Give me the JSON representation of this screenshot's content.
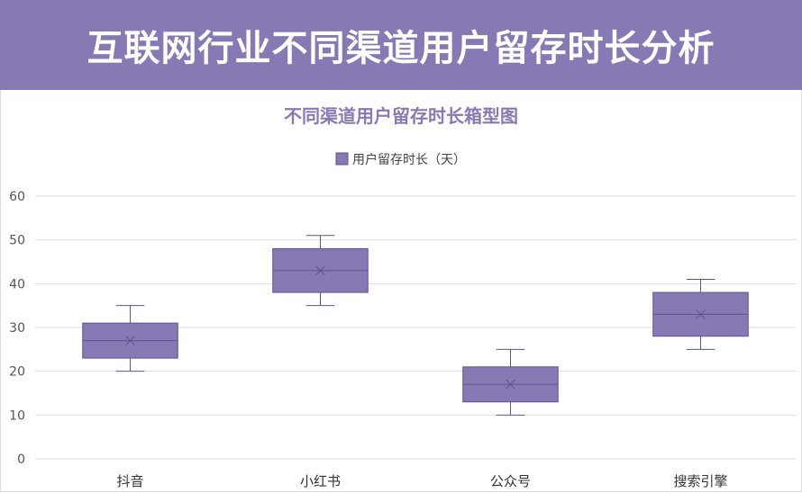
{
  "header": {
    "title": "互联网行业不同渠道用户留存时长分析"
  },
  "colors": {
    "accent": "#8779b4",
    "box_fill": "#8779b4",
    "box_stroke": "#5e5290",
    "grid": "#dddddd"
  },
  "chart_data": {
    "type": "box",
    "title": "不同渠道用户留存时长箱型图",
    "legend": {
      "label": "用户留存时长（天）",
      "position": "top"
    },
    "xlabel": "",
    "ylabel": "",
    "ylim": [
      0,
      60
    ],
    "yticks": [
      0,
      10,
      20,
      30,
      40,
      50,
      60
    ],
    "grid": true,
    "categories": [
      "抖音",
      "小红书",
      "公众号",
      "搜索引擎"
    ],
    "series": [
      {
        "name": "用户留存时长（天）",
        "boxes": [
          {
            "min": 20,
            "q1": 23,
            "median": 27,
            "q3": 31,
            "max": 35,
            "mean": 27
          },
          {
            "min": 35,
            "q1": 38,
            "median": 43,
            "q3": 48,
            "max": 51,
            "mean": 43
          },
          {
            "min": 10,
            "q1": 13,
            "median": 17,
            "q3": 21,
            "max": 25,
            "mean": 17
          },
          {
            "min": 25,
            "q1": 28,
            "median": 33,
            "q3": 38,
            "max": 41,
            "mean": 33
          }
        ]
      }
    ]
  }
}
